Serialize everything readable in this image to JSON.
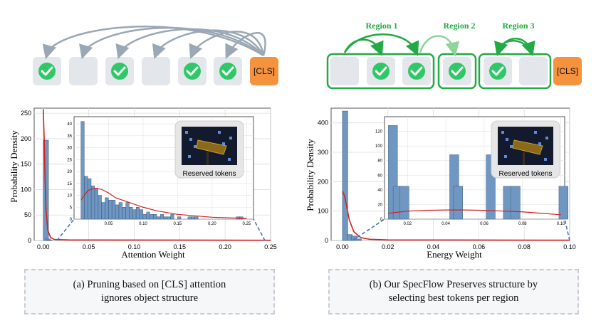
{
  "panel_a": {
    "cls_label": "[CLS]",
    "tokens_checked": [
      true,
      false,
      true,
      false,
      true,
      true
    ],
    "caption_line1": "(a) Pruning based on [CLS] attention",
    "caption_line2": "ignores object structure",
    "inset_image_label": "Reserved tokens"
  },
  "panel_b": {
    "cls_label": "[CLS]",
    "region_labels": [
      "Region 1",
      "Region 2",
      "Region 3"
    ],
    "region_tokens": [
      [
        false,
        true,
        true
      ],
      [
        true
      ],
      [
        true,
        false
      ]
    ],
    "caption_line1": "(b) Our SpecFlow Preserves structure by",
    "caption_line2": "selecting best tokens per region",
    "inset_image_label": "Reserved tokens"
  },
  "colors": {
    "token_bg": "#e3e6ea",
    "check_green": "#2ec866",
    "cls_orange": "#f5923e",
    "arc_gray": "#9aa7b4",
    "region_green": "#22aa44",
    "region2_arrow": "#8ed49b",
    "bar_blue": "#6f97c2",
    "kde_red": "#d42020",
    "zoom_blue": "#3f77bd"
  },
  "chart_data": [
    {
      "type": "bar",
      "xlabel": "Attention Weight",
      "ylabel": "Probability Density",
      "xlim": [
        -0.01,
        0.25
      ],
      "ylim": [
        0,
        260
      ],
      "xticks": [
        "0.00",
        "0.05",
        "0.10",
        "0.15",
        "0.20",
        "0.25"
      ],
      "yticks": [
        "0",
        "50",
        "100",
        "150",
        "200",
        "250"
      ],
      "bins_x": [
        0.0,
        0.002,
        0.004
      ],
      "bins_height": [
        197,
        3,
        1
      ],
      "kde": {
        "x": [
          0.0,
          0.001,
          0.002,
          0.003,
          0.005,
          0.008,
          0.012,
          0.03,
          0.25
        ],
        "y": [
          258,
          200,
          120,
          60,
          20,
          6,
          2,
          1,
          0.5
        ]
      },
      "inset": {
        "xlim": [
          0.0,
          0.26
        ],
        "ylim": [
          0,
          43
        ],
        "xticks": [
          "0.05",
          "0.10",
          "0.15",
          "0.20",
          "0.25"
        ],
        "yticks": [
          "0",
          "5",
          "10",
          "15",
          "20",
          "25",
          "30",
          "35",
          "40"
        ],
        "bins_x": [
          0.01,
          0.015,
          0.02,
          0.025,
          0.03,
          0.035,
          0.04,
          0.045,
          0.05,
          0.055,
          0.06,
          0.065,
          0.07,
          0.075,
          0.08,
          0.085,
          0.09,
          0.095,
          0.1,
          0.105,
          0.11,
          0.115,
          0.12,
          0.125,
          0.13,
          0.135,
          0.14,
          0.145,
          0.15,
          0.155,
          0.16,
          0.165,
          0.17,
          0.175,
          0.18,
          0.185,
          0.19,
          0.195,
          0.2,
          0.205,
          0.21,
          0.215,
          0.22,
          0.225,
          0.23,
          0.235,
          0.24,
          0.245
        ],
        "bins_height": [
          41,
          18,
          17,
          14,
          13,
          10,
          7,
          9,
          8,
          8,
          6,
          7,
          5,
          7,
          5,
          4,
          5,
          4,
          2,
          3,
          2,
          2,
          1,
          2,
          1,
          1,
          2,
          0,
          1,
          0,
          0,
          1,
          1,
          1,
          0,
          0,
          0,
          0,
          0,
          0,
          0,
          0,
          0,
          0,
          0,
          1,
          1,
          0
        ],
        "kde": {
          "x": [
            0.01,
            0.02,
            0.03,
            0.04,
            0.05,
            0.06,
            0.08,
            0.1,
            0.12,
            0.15,
            0.2,
            0.25
          ],
          "y": [
            8,
            12,
            13,
            12.5,
            11,
            9,
            7,
            5,
            3.5,
            2,
            0.8,
            0.3
          ]
        }
      }
    },
    {
      "type": "bar",
      "xlabel": "Energy Weight",
      "ylabel": "Probability Density",
      "xlim": [
        -0.005,
        0.1
      ],
      "ylim": [
        0,
        450
      ],
      "xticks": [
        "0.00",
        "0.02",
        "0.04",
        "0.06",
        "0.08",
        "0.10"
      ],
      "yticks": [
        "0",
        "100",
        "200",
        "300",
        "400"
      ],
      "bins_x": [
        0.0,
        0.002,
        0.004,
        0.006
      ],
      "bins_height": [
        440,
        20,
        15,
        5
      ],
      "kde": {
        "x": [
          0.0,
          0.001,
          0.002,
          0.003,
          0.005,
          0.008,
          0.012,
          0.02,
          0.1
        ],
        "y": [
          168,
          150,
          110,
          70,
          30,
          10,
          4,
          2,
          1
        ]
      },
      "inset": {
        "xlim": [
          0.008,
          0.102
        ],
        "ylim": [
          0,
          140
        ],
        "xticks": [
          "0.02",
          "0.04",
          "0.06",
          "0.08",
          "0.10"
        ],
        "yticks": [
          "0",
          "20",
          "40",
          "60",
          "80",
          "100",
          "120"
        ],
        "bins_x": [
          0.01,
          0.0125,
          0.016,
          0.042,
          0.044,
          0.061,
          0.07,
          0.074,
          0.099
        ],
        "bins_height": [
          128,
          45,
          45,
          88,
          45,
          88,
          45,
          45,
          45
        ],
        "kde": {
          "x": [
            0.01,
            0.02,
            0.03,
            0.04,
            0.05,
            0.06,
            0.07,
            0.08,
            0.09,
            0.1
          ],
          "y": [
            8,
            11,
            12,
            12.5,
            12.5,
            12,
            11,
            10,
            8,
            6
          ]
        }
      }
    }
  ]
}
